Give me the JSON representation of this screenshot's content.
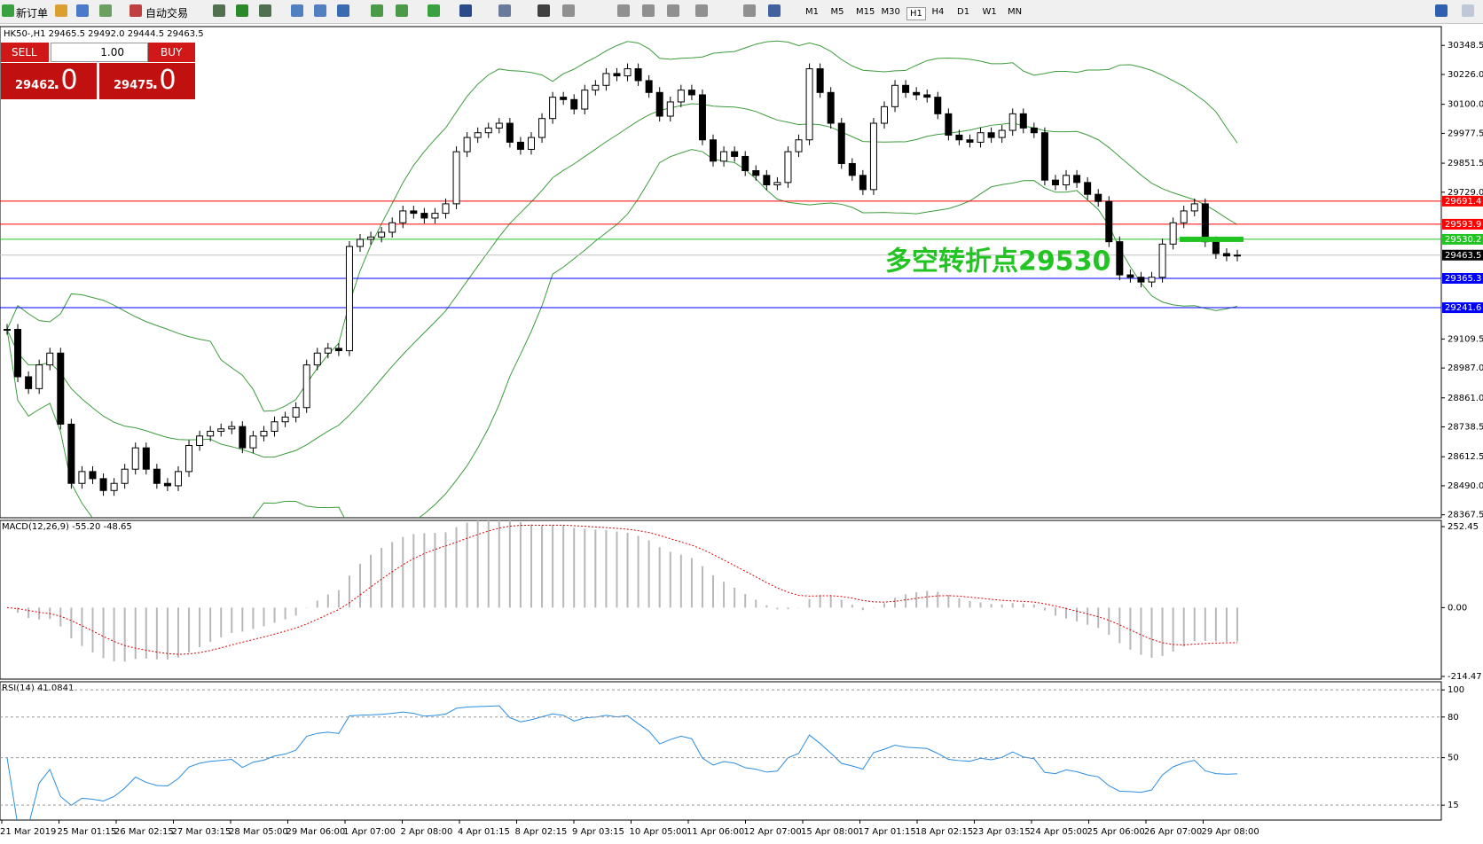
{
  "toolbar": {
    "new_order": "新订单",
    "auto_trading": "自动交易",
    "timeframes": [
      "M1",
      "M5",
      "M15",
      "M30",
      "H1",
      "H4",
      "D1",
      "W1",
      "MN"
    ],
    "active_timeframe": "H1"
  },
  "order_panel": {
    "sell": "SELL",
    "lot": "1.00",
    "buy": "BUY",
    "bid": "29462",
    "bid_frac": ".0",
    "ask": "29475",
    "ask_frac": ".0"
  },
  "chart_data": [
    {
      "type": "candlestick",
      "title": "HK50-,H1  29465.5 29492.0 29444.5 29463.5",
      "annotation": "多空转折点29530",
      "annotation_color": "#22c422",
      "closes": [
        29150,
        28950,
        28900,
        29000,
        29050,
        28750,
        28500,
        28550,
        28520,
        28470,
        28500,
        28560,
        28650,
        28560,
        28500,
        28490,
        28550,
        28660,
        28700,
        28720,
        28730,
        28740,
        28650,
        28700,
        28720,
        28760,
        28780,
        28820,
        29000,
        29050,
        29070,
        29060,
        29500,
        29530,
        29540,
        29560,
        29600,
        29650,
        29640,
        29620,
        29640,
        29680,
        29900,
        29960,
        29980,
        30000,
        30020,
        29940,
        29910,
        29960,
        30040,
        30130,
        30120,
        30080,
        30160,
        30180,
        30230,
        30220,
        30250,
        30200,
        30150,
        30050,
        30110,
        30160,
        30140,
        29950,
        29860,
        29900,
        29880,
        29820,
        29800,
        29760,
        29770,
        29900,
        29950,
        30250,
        30150,
        30020,
        29850,
        29800,
        29740,
        30020,
        30090,
        30180,
        30150,
        30140,
        30130,
        30060,
        29970,
        29950,
        29940,
        29980,
        29960,
        29990,
        30060,
        30000,
        29980,
        29780,
        29760,
        29800,
        29770,
        29720,
        29690,
        29520,
        29380,
        29370,
        29350,
        29370,
        29510,
        29600,
        29650,
        29680,
        29520,
        29470,
        29460,
        29463.5
      ],
      "band_color": "#3c9c3c",
      "ylim": [
        28355,
        30428
      ],
      "yticks": [
        30348.5,
        {
          "value": 30226.0,
          "label": "30226.0"
        },
        {
          "value": 30100.0,
          "label": "30100.0"
        },
        29977.5,
        29851.5,
        {
          "value": 29729.0,
          "label": "29729.0"
        },
        29109.5,
        {
          "value": 28987.0,
          "label": "28987.0"
        },
        {
          "value": 28861.0,
          "label": "28861.0"
        },
        28738.5,
        28612.5,
        {
          "value": 28490.0,
          "label": "28490.0"
        },
        28367.5
      ],
      "levels": [
        {
          "value": 29691.4,
          "color": "#ff0000"
        },
        {
          "value": 29593.9,
          "color": "#ff0000"
        },
        {
          "value": 29530.2,
          "color": "#22c422"
        },
        {
          "value": 29365.3,
          "color": "#0000ff"
        },
        {
          "value": 29241.6,
          "color": "#0000ff"
        }
      ],
      "current": 29463.5,
      "x_labels": [
        "21 Mar 2019",
        "25 Mar 01:15",
        "26 Mar 02:15",
        "27 Mar 03:15",
        "28 Mar 05:00",
        "29 Mar 06:00",
        "1 Apr 07:00",
        "2 Apr 08:00",
        "4 Apr 01:15",
        "8 Apr 02:15",
        "9 Apr 03:15",
        "10 Apr 05:00",
        "11 Apr 06:00",
        "12 Apr 07:00",
        "15 Apr 08:00",
        "17 Apr 01:15",
        "18 Apr 02:15",
        "23 Apr 03:15",
        "24 Apr 05:00",
        "25 Apr 06:00",
        "26 Apr 07:00",
        "29 Apr 08:00"
      ]
    },
    {
      "type": "macd",
      "title": "MACD(12,26,9) -55.20 -48.65",
      "ylim": [
        -222.8,
        271.8
      ],
      "yticks": [
        252.45,
        {
          "value": 0,
          "label": "0.00"
        },
        -214.47
      ],
      "hist_color": "#b8b8b8",
      "signal_color": "#e00000"
    },
    {
      "type": "rsi",
      "title": "RSI(14) 41.0841",
      "ylim": [
        4,
        106
      ],
      "yticks": [
        100,
        80,
        50,
        15
      ],
      "color": "#2a8de0"
    }
  ]
}
